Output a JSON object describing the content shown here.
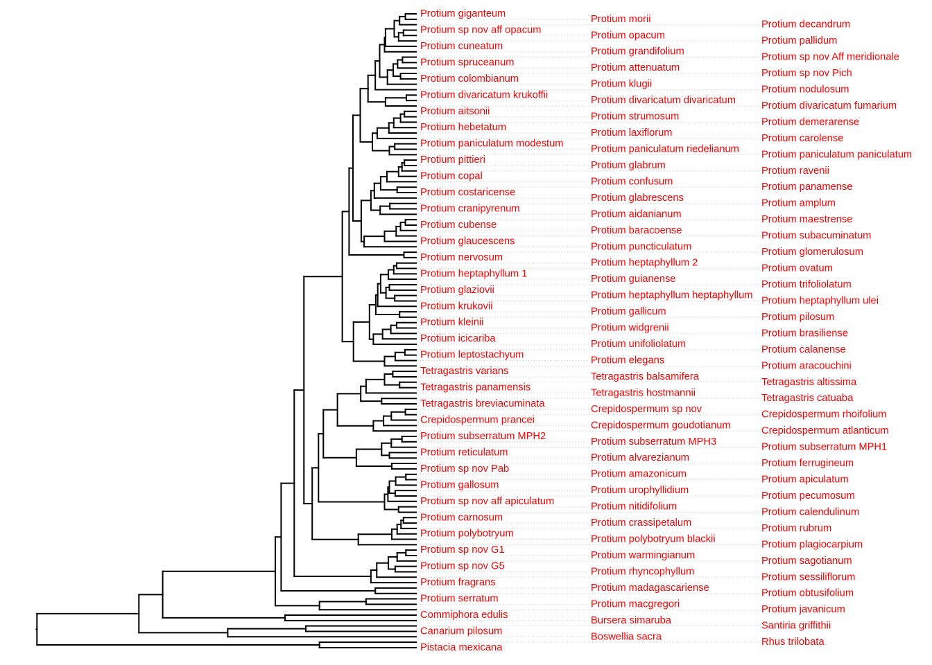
{
  "diagram": {
    "type": "phylogenetic-tree",
    "orientation": "rightward",
    "label_color": "#ff0000",
    "branch_color": "#000000",
    "tips": [
      "Protium giganteum",
      "Protium morii",
      "Protium decandrum",
      "Protium sp nov aff opacum",
      "Protium opacum",
      "Protium pallidum",
      "Protium cuneatum",
      "Protium grandifolium",
      "Protium sp nov Aff meridionale",
      "Protium spruceanum",
      "Protium attenuatum",
      "Protium sp nov Pich",
      "Protium colombianum",
      "Protium klugii",
      "Protium nodulosum",
      "Protium divaricatum krukoffii",
      "Protium divaricatum divaricatum",
      "Protium divaricatum fumarium",
      "Protium aitsonii",
      "Protium strumosum",
      "Protium demerarense",
      "Protium hebetatum",
      "Protium laxiflorum",
      "Protium carolense",
      "Protium paniculatum modestum",
      "Protium paniculatum riedelianum",
      "Protium paniculatum paniculatum",
      "Protium pittieri",
      "Protium glabrum",
      "Protium ravenii",
      "Protium copal",
      "Protium confusum",
      "Protium panamense",
      "Protium costaricense",
      "Protium glabrescens",
      "Protium amplum",
      "Protium cranipyrenum",
      "Protium aidanianum",
      "Protium maestrense",
      "Protium cubense",
      "Protium baracoense",
      "Protium subacuminatum",
      "Protium glaucescens",
      "Protium puncticulatum",
      "Protium glomerulosum",
      "Protium nervosum",
      "Protium heptaphyllum 2",
      "Protium ovatum",
      "Protium heptaphyllum 1",
      "Protium guianense",
      "Protium trifoliolatum",
      "Protium glaziovii",
      "Protium heptaphyllum heptaphyllum",
      "Protium heptaphyllum ulei",
      "Protium krukovii",
      "Protium gallicum",
      "Protium pilosum",
      "Protium kleinii",
      "Protium widgrenii",
      "Protium brasiliense",
      "Protium icicariba",
      "Protium unifoliolatum",
      "Protium calanense",
      "Protium leptostachyum",
      "Protium elegans",
      "Protium aracouchini",
      "Tetragastris varians",
      "Tetragastris balsamifera",
      "Tetragastris altissima",
      "Tetragastris panamensis",
      "Tetragastris hostmannii",
      "Tetragastris catuaba",
      "Tetragastris breviacuminata",
      "Crepidospermum sp nov",
      "Crepidospermum rhoifolium",
      "Crepidospermum prancei",
      "Crepidospermum goudotianum",
      "Crepidospermum atlanticum",
      "Protium subserratum MPH2",
      "Protium subserratum MPH3",
      "Protium subserratum MPH1",
      "Protium reticulatum",
      "Protium alvarezianum",
      "Protium ferrugineum",
      "Protium sp nov Pab",
      "Protium amazonicum",
      "Protium apiculatum",
      "Protium gallosum",
      "Protium urophyllidium",
      "Protium pecumosum",
      "Protium sp nov aff apiculatum",
      "Protium nitidifolium",
      "Protium calendulinum",
      "Protium carnosum",
      "Protium crassipetalum",
      "Protium rubrum",
      "Protium polybotryum",
      "Protium polybotryum blackii",
      "Protium plagiocarpium",
      "Protium sp nov G1",
      "Protium warmingianum",
      "Protium sagotianum",
      "Protium sp nov G5",
      "Protium rhyncophyllum",
      "Protium sessiliflorum",
      "Protium fragrans",
      "Protium madagascariense",
      "Protium obtusifolium",
      "Protium serratum",
      "Protium macgregori",
      "Protium javanicum",
      "Commiphora edulis",
      "Bursera simaruba",
      "Santiria griffithii",
      "Canarium pilosum",
      "Boswellia sacra",
      "Rhus trilobata",
      "Pistacia mexicana"
    ],
    "tree": [
      7.81,
      [
        5.71,
        [
          5.22,
          [
            2.9,
            [
              2.78,
              [
                2.51,
                [
                  2.31,
                  [
                    1.52,
                    [
                      1.38,
                      [
                        1.3,
                        [
                          1.15,
                          [
                            0.99,
                            [
                              0.84,
                              [
                                0.75,
                                [
                                  0.65,
                                  [
                                    0.63,
                                    [
                                      0.45,
                                      [
                                        0.34,
                                        [
                                          0.22,
                                          1,
                                          2
                                        ],
                                        3
                                      ],
                                      [
                                        0.36,
                                        [
                                          0.26,
                                          4,
                                          5
                                        ],
                                        6
                                      ]
                                    ],
                                    7
                                  ],
                                  8
                                ],
                                [
                                  0.59,
                                  [
                                    0.47,
                                    [
                                      0.38,
                                      [
                                        0.28,
                                        9,
                                        10
                                      ],
                                      11
                                    ],
                                    [
                                      0.32,
                                      12,
                                      13
                                    ]
                                  ],
                                  14
                                ]
                              ],
                              15
                            ],
                            [
                              0.63,
                              [
                                0.2,
                                16,
                                17
                              ],
                              18
                            ]
                          ],
                          [
                            0.9,
                            [
                              0.8,
                              [
                                0.56,
                                [
                                  0.46,
                                  [
                                    0.32,
                                    [
                                      0.24,
                                      19,
                                      20
                                    ],
                                    21
                                  ],
                                  22
                                ],
                                23
                              ],
                              24
                            ],
                            [
                              0.55,
                              [
                                0.44,
                                25,
                                26
                              ],
                              27
                            ]
                          ]
                        ],
                        [
                          1.13,
                          [
                            0.93,
                            [
                              0.86,
                              [
                                0.73,
                                [
                                  0.6,
                                  [
                                    0.36,
                                    [
                                      0.29,
                                      [
                                        0.24,
                                        28,
                                        29
                                      ],
                                      30
                                    ],
                                    31
                                  ],
                                  32
                                ],
                                [
                                  0.39,
                                  33,
                                  34
                                ]
                              ],
                              35
                            ],
                            [
                              0.74,
                              [
                                0.54,
                                36,
                                37
                              ],
                              38
                            ]
                          ],
                          [
                            1.07,
                            [
                              0.65,
                              [
                                0.41,
                                [
                                  0.32,
                                  [
                                    0.22,
                                    39,
                                    40
                                  ],
                                  41
                                ],
                                42
                              ],
                              43
                            ],
                            44
                          ]
                        ]
                      ],
                      [
                        0.25,
                        45,
                        46
                      ]
                    ],
                    [
                      1.29,
                      [
                        0.96,
                        [
                          0.83,
                          [
                            0.79,
                            [
                              0.73,
                              [
                                0.57,
                                [
                                  0.46,
                                  [
                                    0.4,
                                    47,
                                    48
                                  ],
                                  49
                                ],
                                50
                              ],
                              [
                                0.62,
                                [
                                  0.55,
                                  51,
                                  52
                                ],
                                [
                                  0.44,
                                  53,
                                  54
                                ]
                              ]
                            ],
                            55
                          ],
                          [
                            0.34,
                            56,
                            57
                          ]
                        ],
                        [
                          0.88,
                          [
                            0.69,
                            [
                              0.52,
                              [
                                0.4,
                                58,
                                59
                              ],
                              60
                            ],
                            61
                          ],
                          62
                        ]
                      ],
                      [
                        0.65,
                        [
                          0.43,
                          [
                            0.23,
                            63,
                            64
                          ],
                          65
                        ],
                        66
                      ]
                    ]
                  ],
                  [
                    2.14,
                    [
                      2.01,
                      [
                        1.91,
                        [
                          1.62,
                          [
                            1.14,
                            [
                              1.03,
                              [
                                0.65,
                                [
                                  0.48,
                                  67,
                                  68
                                ],
                                [
                                  0.34,
                                  69,
                                  70
                                ]
                              ],
                              71
                            ],
                            [
                              0.71,
                              72,
                              73
                            ]
                          ],
                          [
                            0.88,
                            [
                              0.67,
                              [
                                0.51,
                                [
                                  0.22,
                                  74,
                                  75
                                ],
                                76
                              ],
                              77
                            ],
                            78
                          ]
                        ],
                        [
                          1.23,
                          [
                            0.71,
                            [
                              0.51,
                              [
                                0.29,
                                79,
                                80
                              ],
                              81
                            ],
                            [
                              0.55,
                              82,
                              83
                            ]
                          ],
                          [
                            0.5,
                            84,
                            85
                          ]
                        ]
                      ],
                      [
                        0.65,
                        [
                          0.58,
                          [
                            0.55,
                            [
                              0.42,
                              [
                                0.21,
                                86,
                                87
                              ],
                              88
                            ],
                            [
                              0.43,
                              89,
                              90
                            ]
                          ],
                          91
                        ],
                        [
                          0.36,
                          92,
                          93
                        ]
                      ]
                    ],
                    [
                      1.19,
                      [
                        0.5,
                        [
                          0.39,
                          [
                            0.31,
                            [
                              0.26,
                              94,
                              95
                            ],
                            96
                          ],
                          97
                        ],
                        98
                      ],
                      99
                    ]
                  ]
                ],
                [
                  0.93,
                  [
                    0.81,
                    [
                      0.57,
                      [
                        0.39,
                        [
                          0.21,
                          100,
                          101
                        ],
                        102
                      ],
                      [
                        0.43,
                        103,
                        104
                      ]
                    ],
                    105
                  ],
                  106
                ]
              ],
              [
                0.84,
                107,
                108
              ]
            ],
            [
              1.99,
              [
                1.03,
                109,
                110
              ],
              111
            ]
          ],
          [
            2.7,
            112,
            113
          ]
        ],
        [
          3.88,
          [
            2.27,
            114,
            115
          ],
          116
        ]
      ],
      [
        1.99,
        117,
        118
      ]
    ]
  }
}
